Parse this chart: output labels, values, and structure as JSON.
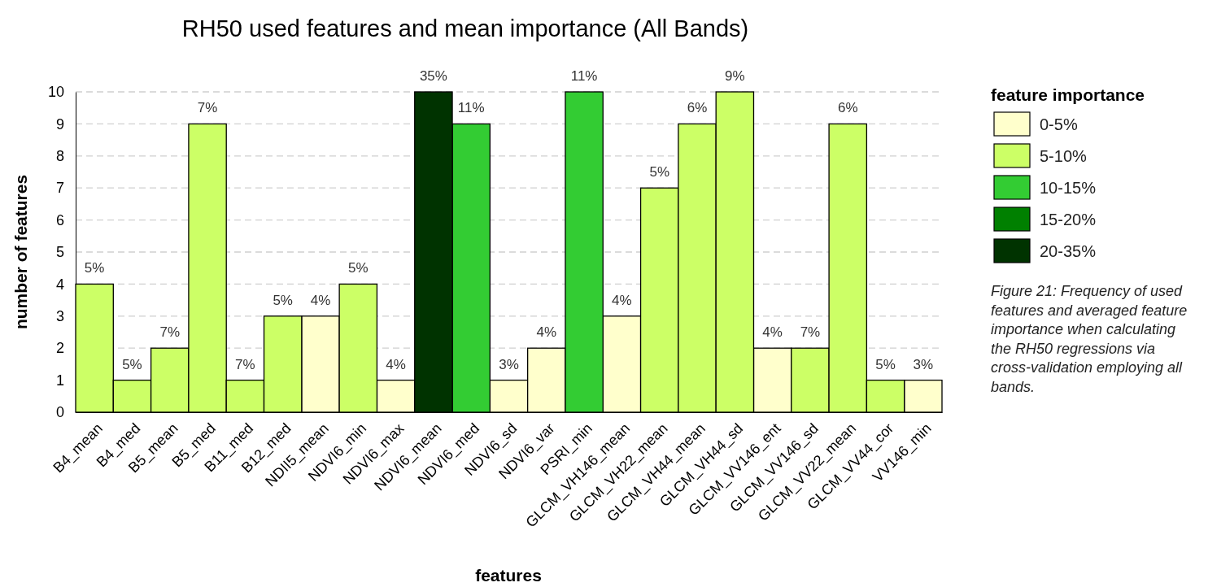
{
  "chart_data": {
    "type": "bar",
    "title": "RH50 used features and mean importance  (All Bands)",
    "xlabel": "features",
    "ylabel": "number of features",
    "legend_title": "feature importance",
    "categories": [
      "B4_mean",
      "B4_med",
      "B5_mean",
      "B5_med",
      "B11_med",
      "B12_med",
      "NDII5_mean",
      "NDVI6_min",
      "NDVI6_max",
      "NDVI6_mean",
      "NDVI6_med",
      "NDVI6_sd",
      "NDVI6_var",
      "PSRI_min",
      "GLCM_VH146_mean",
      "GLCM_VH22_mean",
      "GLCM_VH44_mean",
      "GLCM_VH44_sd",
      "GLCM_VV146_ent",
      "GLCM_VV146_sd",
      "GLCM_VV22_mean",
      "GLCM_VV44_cor",
      "VV146_min"
    ],
    "series": [
      {
        "name": "0-5%",
        "color": "#ffffcc",
        "values": [
          null,
          null,
          null,
          null,
          null,
          null,
          3,
          null,
          1,
          null,
          null,
          1,
          2,
          null,
          3,
          null,
          null,
          null,
          2,
          null,
          null,
          null,
          1
        ]
      },
      {
        "name": "5-10%",
        "color": "#ccff66",
        "values": [
          4,
          1,
          2,
          9,
          1,
          3,
          null,
          4,
          null,
          null,
          null,
          null,
          null,
          null,
          null,
          7,
          9,
          10,
          null,
          2,
          9,
          1,
          null
        ]
      },
      {
        "name": "10-15%",
        "color": "#33cc33",
        "values": [
          null,
          null,
          null,
          null,
          null,
          null,
          null,
          null,
          null,
          null,
          9,
          null,
          null,
          10,
          null,
          null,
          null,
          null,
          null,
          null,
          null,
          null,
          null
        ]
      },
      {
        "name": "15-20%",
        "color": "#008000",
        "values": [
          null,
          null,
          null,
          null,
          null,
          null,
          null,
          null,
          null,
          null,
          null,
          null,
          null,
          null,
          null,
          null,
          null,
          null,
          null,
          null,
          null,
          null,
          null
        ]
      },
      {
        "name": "20-35%",
        "color": "#003300",
        "values": [
          null,
          null,
          null,
          null,
          null,
          null,
          null,
          null,
          null,
          10,
          null,
          null,
          null,
          null,
          null,
          null,
          null,
          null,
          null,
          null,
          null,
          null,
          null
        ]
      }
    ],
    "ylim": [
      0,
      10
    ],
    "yticks": [
      0,
      1,
      2,
      3,
      4,
      5,
      6,
      7,
      8,
      9,
      10
    ],
    "grid": "y",
    "legend": "right",
    "annotations": [
      {
        "text": "5%",
        "x": "B4_mean",
        "y": 4
      },
      {
        "text": "5%",
        "x": "B4_med",
        "y": 1
      },
      {
        "text": "7%",
        "x": "B5_mean",
        "y": 2
      },
      {
        "text": "7%",
        "x": "B5_med",
        "y": 9
      },
      {
        "text": "7%",
        "x": "B11_med",
        "y": 1
      },
      {
        "text": "5%",
        "x": "B12_med",
        "y": 3
      },
      {
        "text": "4%",
        "x": "NDII5_mean",
        "y": 3
      },
      {
        "text": "5%",
        "x": "NDVI6_min",
        "y": 4
      },
      {
        "text": "4%",
        "x": "NDVI6_max",
        "y": 1
      },
      {
        "text": "35%",
        "x": "NDVI6_mean",
        "y": 10
      },
      {
        "text": "11%",
        "x": "NDVI6_med",
        "y": 9
      },
      {
        "text": "3%",
        "x": "NDVI6_sd",
        "y": 1
      },
      {
        "text": "4%",
        "x": "NDVI6_var",
        "y": 2
      },
      {
        "text": "11%",
        "x": "PSRI_min",
        "y": 10
      },
      {
        "text": "4%",
        "x": "GLCM_VH146_mean",
        "y": 3
      },
      {
        "text": "5%",
        "x": "GLCM_VH22_mean",
        "y": 7
      },
      {
        "text": "6%",
        "x": "GLCM_VH44_mean",
        "y": 9
      },
      {
        "text": "9%",
        "x": "GLCM_VH44_sd",
        "y": 10
      },
      {
        "text": "4%",
        "x": "GLCM_VV146_ent",
        "y": 2
      },
      {
        "text": "7%",
        "x": "GLCM_VV146_sd",
        "y": 2
      },
      {
        "text": "6%",
        "x": "GLCM_VV22_mean",
        "y": 9
      },
      {
        "text": "5%",
        "x": "GLCM_VV44_cor",
        "y": 1
      },
      {
        "text": "3%",
        "x": "VV146_min",
        "y": 1
      },
      "Figure 21: Frequency of used features and averaged feature importance when calculating the RH50 regressions via cross-validation employing all bands."
    ]
  }
}
